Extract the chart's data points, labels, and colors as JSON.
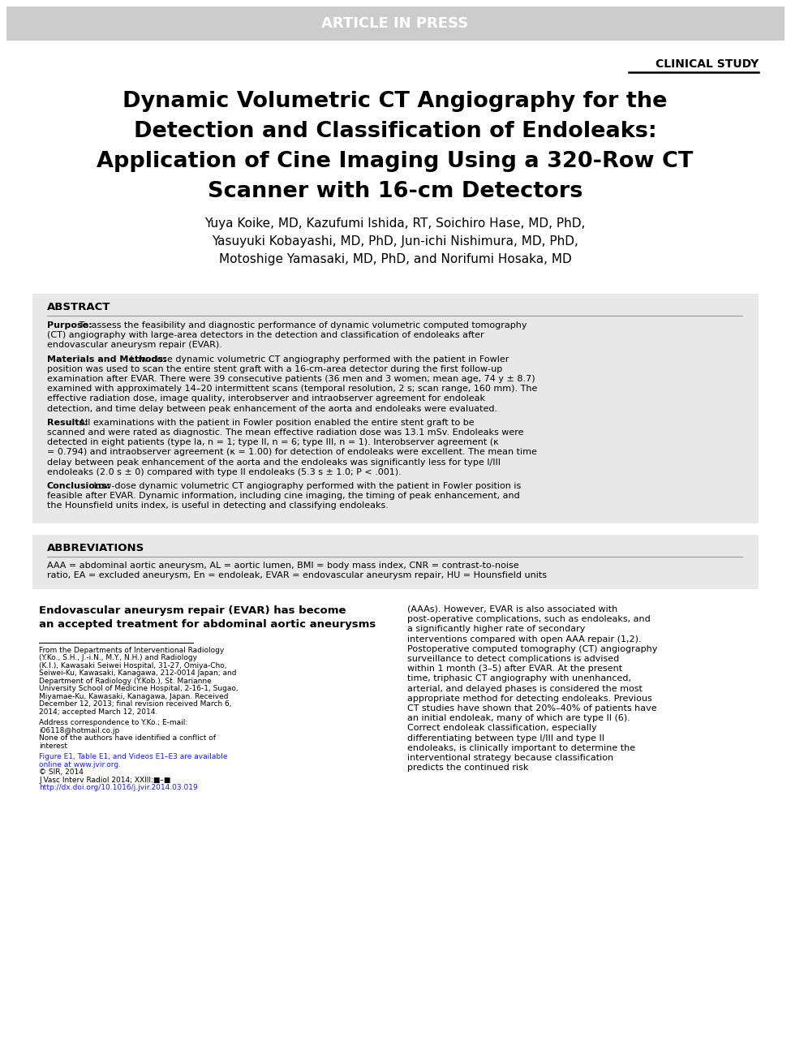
{
  "article_in_press_text": "ARTICLE IN PRESS",
  "article_in_press_bg": "#cccccc",
  "clinical_study_text": "CLINICAL STUDY",
  "title_line1": "Dynamic Volumetric CT Angiography for the",
  "title_line2": "Detection and Classification of Endoleaks:",
  "title_line3": "Application of Cine Imaging Using a 320-Row CT",
  "title_line4": "Scanner with 16-cm Detectors",
  "authors_line1": "Yuya Koike, MD, Kazufumi Ishida, RT, Soichiro Hase, MD, PhD,",
  "authors_line2": "Yasuyuki Kobayashi, MD, PhD, Jun-ichi Nishimura, MD, PhD,",
  "authors_line3": "Motoshige Yamasaki, MD, PhD, and Norifumi Hosaka, MD",
  "abstract_label": "ABSTRACT",
  "abstract_bg": "#e8e8e8",
  "purpose_label": "Purpose:",
  "purpose_text": " To assess the feasibility and diagnostic performance of dynamic volumetric computed tomography (CT) angiography with large-area detectors in the detection and classification of endoleaks after endovascular aneurysm repair (EVAR).",
  "mm_label": "Materials and Methods:",
  "mm_text": " Low-dose dynamic volumetric CT angiography performed with the patient in Fowler position was used to scan the entire stent graft with a 16-cm-area detector during the first follow-up examination after EVAR. There were 39 consecutive patients (36 men and 3 women; mean age, 74 y ± 8.7) examined with approximately 14–20 intermittent scans (temporal resolution, 2 s; scan range, 160 mm). The effective radiation dose, image quality, interobserver and intraobserver agreement for endoleak detection, and time delay between peak enhancement of the aorta and endoleaks were evaluated.",
  "results_label": "Results:",
  "results_text": " All examinations with the patient in Fowler position enabled the entire stent graft to be scanned and were rated as diagnostic. The mean effective radiation dose was 13.1 mSv. Endoleaks were detected in eight patients (type Ia, n = 1; type II, n = 6; type III, n = 1). Interobserver agreement (κ = 0.794) and intraobserver agreement (κ = 1.00) for detection of endoleaks were excellent. The mean time delay between peak enhancement of the aorta and the endoleaks was significantly less for type I/III endoleaks (2.0 s ± 0) compared with type II endoleaks (5.3 s ± 1.0; P < .001).",
  "conclusions_label": "Conclusions:",
  "conclusions_text": " Low-dose dynamic volumetric CT angiography performed with the patient in Fowler position is feasible after EVAR. Dynamic information, including cine imaging, the timing of peak enhancement, and the Hounsfield units index, is useful in detecting and classifying endoleaks.",
  "abbrev_label": "ABBREVIATIONS",
  "abbrev_text": "AAA = abdominal aortic aneurysm, AL = aortic lumen, BMI = body mass index, CNR = contrast-to-noise ratio, EA = excluded aneurysm, En = endoleak, EVAR = endovascular aneurysm repair, HU = Hounsfield units",
  "footnote1": "From the Departments of Interventional Radiology (Y.Ko., S.H., J.-i.N., M.Y., N.H.) and Radiology (K.I.), Kawasaki Seiwei Hospital, 31-27, Omiya-Cho, Seiwei-Ku, Kawasaki, Kanagawa, 212-0014 Japan; and Department of Radiology (Y.Kob.), St. Marianne University School of Medicine Hospital, 2-16-1, Sugao, Miyamae-Ku, Kawasaki, Kanagawa, Japan. Received December 12, 2013; final revision received March 6, 2014; accepted March 12, 2014.",
  "footnote2": "Address correspondence to Y.Ko.; E-mail: i06118@hotmail.co.jp",
  "footnote3": "None of the authors have identified a conflict of interest",
  "footnote4": "Figure E1, Table E1, and Videos E1–E3 are available online at www.jvir.org.",
  "footnote5": "© SIR, 2014",
  "footnote6": "J Vasc Interv Radiol 2014; XXIII:■–■",
  "footnote7": "http://dx.doi.org/10.1016/j.jvir.2014.03.019",
  "body_col1_line1": "Endovascular aneurysm repair (EVAR) has become",
  "body_col1_line2": "an accepted treatment for abdominal aortic aneurysms",
  "body_col2_para": "(AAAs). However, EVAR is also associated with post-operative complications, such as endoleaks, and a significantly higher rate of secondary interventions compared with open AAA repair (1,2). Postoperative computed tomography (CT) angiography surveillance to detect complications is advised within 1 month (3–5) after EVAR. At the present time, triphasic CT angiography with unenhanced, arterial, and delayed phases is considered the most appropriate method for detecting endoleaks. Previous CT studies have shown that 20%–40% of patients have an initial endoleak, many of which are type II (6). Correct endoleak classification, especially differentiating between type I/III and type II endoleaks, is clinically important to determine the interventional strategy because classification predicts the continued risk"
}
